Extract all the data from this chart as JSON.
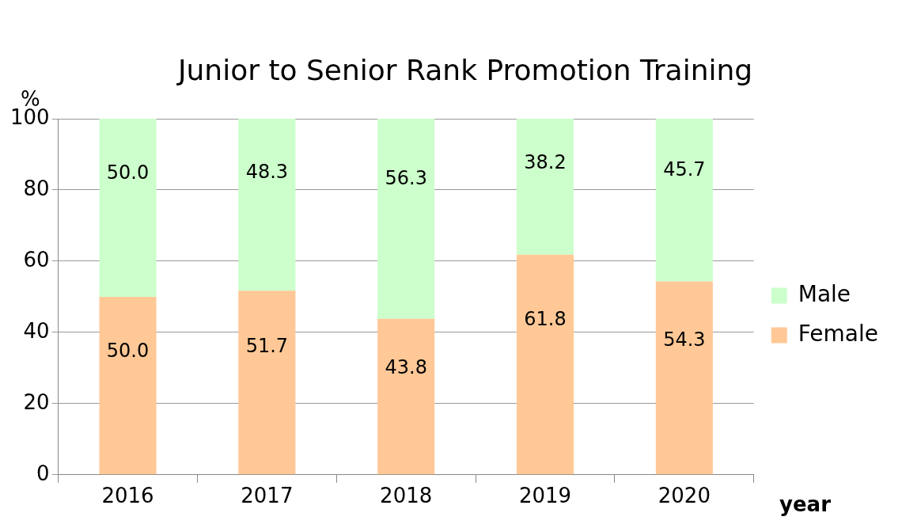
{
  "chart_data": {
    "type": "bar",
    "title": "Junior to Senior Rank Promotion Training",
    "ylabel": "%",
    "xlabel": "year",
    "categories": [
      "2016",
      "2017",
      "2018",
      "2019",
      "2020"
    ],
    "series": [
      {
        "name": "Female",
        "color": "#ffc896",
        "values": [
          50.0,
          51.7,
          43.8,
          61.8,
          54.3
        ],
        "value_labels": [
          "50.0",
          "51.7",
          "43.8",
          "61.8",
          "54.3"
        ]
      },
      {
        "name": "Male",
        "color": "#ccffcc",
        "values": [
          50.0,
          48.3,
          56.3,
          38.2,
          45.7
        ],
        "value_labels": [
          "50.0",
          "48.3",
          "56.3",
          "38.2",
          "45.7"
        ]
      }
    ],
    "stacked": true,
    "ylim": [
      0,
      100
    ],
    "yticks": [
      0,
      20,
      40,
      60,
      80,
      100
    ],
    "grid": "y",
    "legend": "right"
  }
}
